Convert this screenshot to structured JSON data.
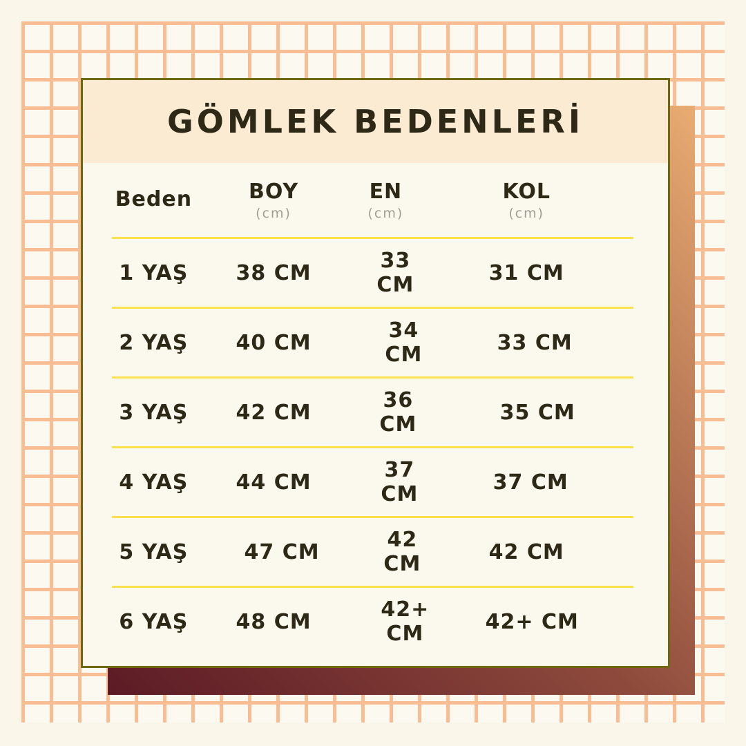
{
  "title": "GÖMLEK BEDENLERİ",
  "colors": {
    "page_background": "#faf7ea",
    "grid_line": "#f8bd93",
    "grid_cell": "#fcfaf0",
    "card_background": "#fbf9ee",
    "card_border": "#6e6910",
    "header_band": "#fcebd3",
    "divider_yellow": "#fbe14b",
    "text_dark": "#2e2917",
    "text_gray": "#a09e94",
    "shadow_gradient_dark": "#5c1a25",
    "shadow_gradient_light": "#e9ac72"
  },
  "table": {
    "columns": [
      {
        "label": "Beden",
        "unit": ""
      },
      {
        "label": "BOY",
        "unit": "(cm)"
      },
      {
        "label": "EN",
        "unit": "(cm)"
      },
      {
        "label": "KOL",
        "unit": "(cm)"
      }
    ],
    "rows": [
      {
        "size": "1 YAŞ",
        "boy": "38 CM",
        "en": "33 CM",
        "kol": "31 CM"
      },
      {
        "size": "2 YAŞ",
        "boy": "40 CM",
        "en": "34 CM",
        "kol": "33 CM"
      },
      {
        "size": "3 YAŞ",
        "boy": "42 CM",
        "en": "36 CM",
        "kol": "35 CM"
      },
      {
        "size": "4 YAŞ",
        "boy": "44 CM",
        "en": "37 CM",
        "kol": "37 CM"
      },
      {
        "size": "5 YAŞ",
        "boy": "47 CM",
        "en": "42 CM",
        "kol": "42 CM"
      },
      {
        "size": "6 YAŞ",
        "boy": "48 CM",
        "en": "42+ CM",
        "kol": "42+ CM"
      }
    ]
  },
  "chart_data": {
    "type": "table",
    "title": "GÖMLEK BEDENLERİ",
    "columns": [
      "Beden",
      "BOY (cm)",
      "EN (cm)",
      "KOL (cm)"
    ],
    "rows": [
      [
        "1 YAŞ",
        "38 CM",
        "33 CM",
        "31 CM"
      ],
      [
        "2 YAŞ",
        "40 CM",
        "34 CM",
        "33 CM"
      ],
      [
        "3 YAŞ",
        "42 CM",
        "36 CM",
        "35 CM"
      ],
      [
        "4 YAŞ",
        "44 CM",
        "37 CM",
        "37 CM"
      ],
      [
        "5 YAŞ",
        "47 CM",
        "42 CM",
        "42 CM"
      ],
      [
        "6 YAŞ",
        "48 CM",
        "42+ CM",
        "42+ CM"
      ]
    ],
    "units": "cm",
    "layout": "header band top, yellow row dividers, grid backdrop"
  }
}
